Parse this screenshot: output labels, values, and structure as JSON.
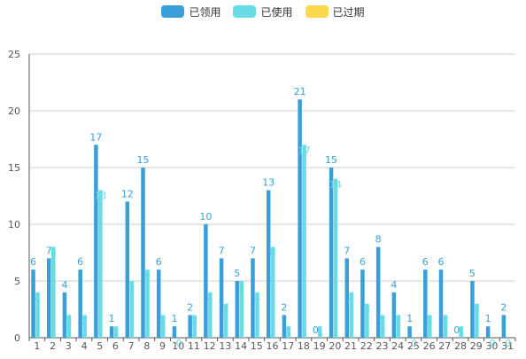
{
  "chart_data": {
    "type": "bar",
    "categories": [
      "1",
      "2",
      "3",
      "4",
      "5",
      "6",
      "7",
      "8",
      "9",
      "10",
      "11",
      "12",
      "13",
      "14",
      "15",
      "16",
      "17",
      "18",
      "19",
      "20",
      "21",
      "22",
      "23",
      "24",
      "25",
      "26",
      "27",
      "28",
      "29",
      "30",
      "31"
    ],
    "series": [
      {
        "name": "已领用",
        "color": "#3a9fd8",
        "values": [
          6,
          7,
          4,
          6,
          17,
          1,
          12,
          15,
          6,
          1,
          2,
          10,
          7,
          5,
          7,
          13,
          2,
          21,
          0,
          15,
          7,
          6,
          8,
          4,
          1,
          6,
          6,
          0,
          5,
          1,
          2
        ]
      },
      {
        "name": "已使用",
        "color": "#67dbe6",
        "values": [
          4,
          8,
          2,
          2,
          13,
          1,
          5,
          6,
          2,
          0,
          2,
          4,
          3,
          5,
          4,
          8,
          1,
          17,
          1,
          14,
          4,
          3,
          2,
          2,
          0,
          2,
          2,
          1,
          3,
          0,
          0
        ]
      },
      {
        "name": "已过期",
        "color": "#fcd84f",
        "values": [
          0,
          0,
          0,
          0,
          0,
          0,
          0,
          0,
          0,
          0,
          0,
          0,
          0,
          0,
          0,
          0,
          0,
          0,
          0,
          0,
          0,
          0,
          0,
          0,
          0,
          0,
          0,
          0,
          0,
          0,
          0
        ]
      }
    ],
    "ylim": [
      0,
      25
    ],
    "yticks": [
      0,
      5,
      10,
      15,
      20,
      25
    ],
    "grid": true,
    "legend_position": "top"
  }
}
